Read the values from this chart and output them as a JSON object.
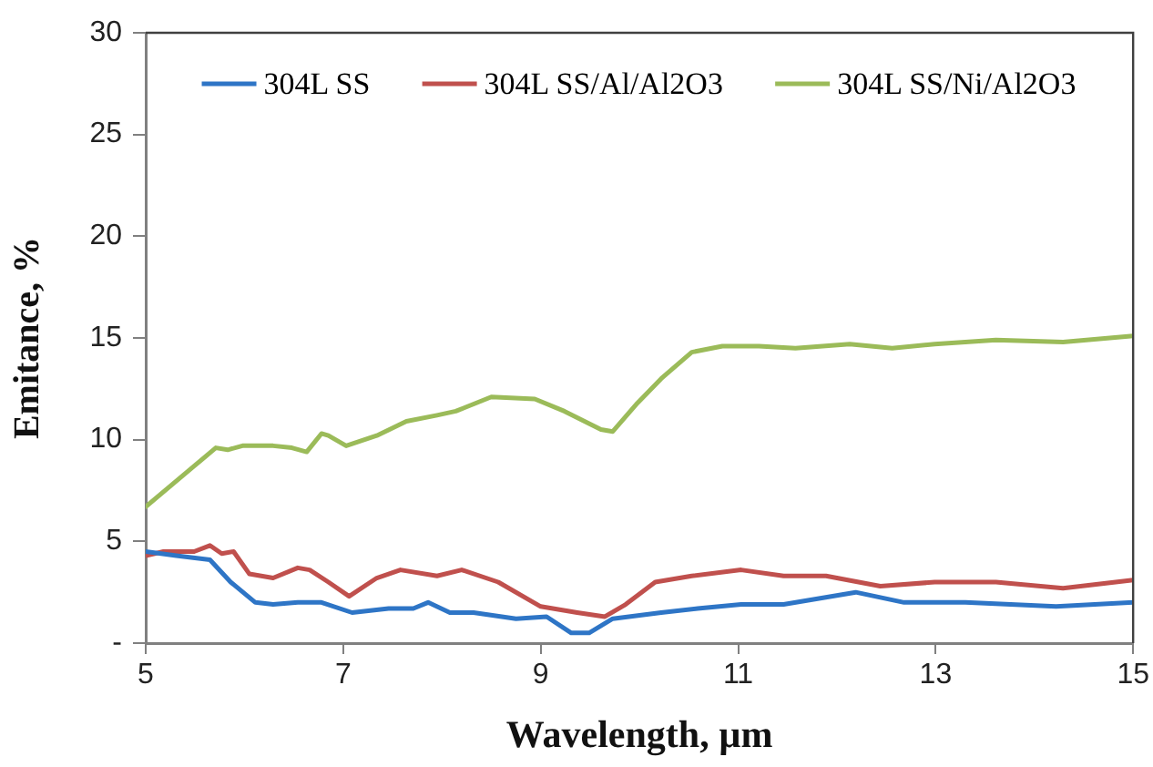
{
  "chart_data": {
    "type": "line",
    "xlabel": "Wavelength, µm",
    "ylabel": "Emitance, %",
    "xlim": [
      5,
      15
    ],
    "xticks": [
      5,
      7,
      9,
      11,
      13,
      15
    ],
    "ylim": [
      0,
      30
    ],
    "yticks": [
      {
        "value": 0,
        "label": "-"
      },
      5,
      10,
      15,
      20,
      25,
      30
    ],
    "grid": false,
    "legend": "top",
    "marker": "none",
    "line_style": "solid",
    "series": [
      {
        "name": "304L SS",
        "color": "#2e75c6",
        "x": [
          5,
          5.31,
          5.65,
          5.86,
          6.11,
          6.29,
          6.54,
          6.78,
          7.09,
          7.46,
          7.71,
          7.86,
          8.08,
          8.32,
          8.75,
          9.06,
          9.31,
          9.49,
          9.73,
          10.22,
          10.59,
          11.03,
          11.46,
          12.19,
          12.68,
          13.3,
          14.22,
          15
        ],
        "values": [
          4.5,
          4.3,
          4.1,
          3.0,
          2.0,
          1.9,
          2.0,
          2.0,
          1.5,
          1.7,
          1.7,
          2.0,
          1.5,
          1.5,
          1.2,
          1.3,
          0.5,
          0.5,
          1.2,
          1.5,
          1.7,
          1.9,
          1.9,
          2.5,
          2.0,
          2.0,
          1.8,
          2.0
        ]
      },
      {
        "name": "304L SS/Al/Al2O3",
        "color": "#c0504d",
        "x": [
          5,
          5.18,
          5.49,
          5.65,
          5.77,
          5.89,
          6.05,
          6.29,
          6.54,
          6.66,
          6.85,
          7.06,
          7.34,
          7.58,
          7.95,
          8.2,
          8.57,
          9.0,
          9.37,
          9.65,
          9.86,
          10.16,
          10.53,
          11.03,
          11.46,
          11.89,
          12.44,
          12.99,
          13.61,
          14.29,
          15
        ],
        "values": [
          4.3,
          4.5,
          4.5,
          4.8,
          4.4,
          4.5,
          3.4,
          3.2,
          3.7,
          3.6,
          3.0,
          2.3,
          3.2,
          3.6,
          3.3,
          3.6,
          3.0,
          1.8,
          1.5,
          1.3,
          1.9,
          3.0,
          3.3,
          3.6,
          3.3,
          3.3,
          2.8,
          3.0,
          3.0,
          2.7,
          3.1
        ]
      },
      {
        "name": "304L SS/Ni/Al2O3",
        "color": "#9bbb59",
        "x": [
          5,
          5.49,
          5.71,
          5.83,
          5.98,
          6.29,
          6.48,
          6.63,
          6.78,
          6.85,
          7.03,
          7.34,
          7.64,
          7.95,
          8.14,
          8.5,
          8.94,
          9.24,
          9.61,
          9.73,
          9.98,
          10.22,
          10.53,
          10.84,
          11.21,
          11.58,
          12.13,
          12.56,
          12.99,
          13.61,
          14.29,
          15
        ],
        "values": [
          6.7,
          8.7,
          9.6,
          9.5,
          9.7,
          9.7,
          9.6,
          9.4,
          10.3,
          10.2,
          9.7,
          10.2,
          10.9,
          11.2,
          11.4,
          12.1,
          12.0,
          11.4,
          10.5,
          10.4,
          11.8,
          13.0,
          14.3,
          14.6,
          14.6,
          14.5,
          14.7,
          14.5,
          14.7,
          14.9,
          14.8,
          15.1
        ]
      }
    ]
  }
}
